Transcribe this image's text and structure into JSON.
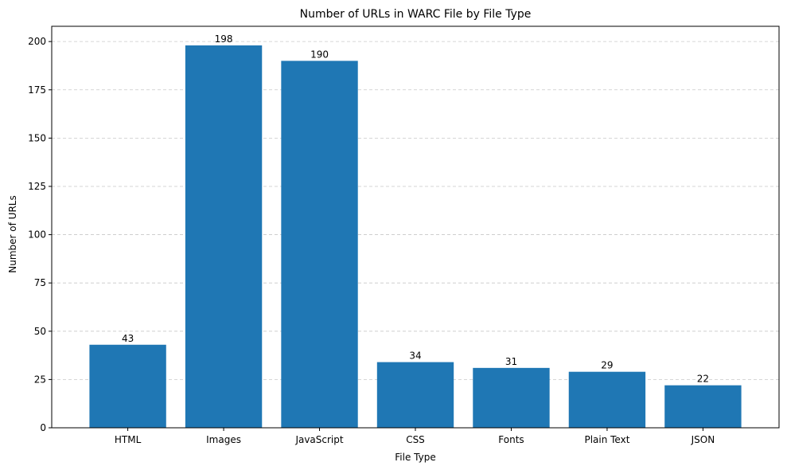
{
  "chart_data": {
    "type": "bar",
    "title": "Number of URLs in WARC File by File Type",
    "xlabel": "File Type",
    "ylabel": "Number of URLs",
    "categories": [
      "HTML",
      "Images",
      "JavaScript",
      "CSS",
      "Fonts",
      "Plain Text",
      "JSON"
    ],
    "values": [
      43,
      198,
      190,
      34,
      31,
      29,
      22
    ],
    "data_labels": [
      "43",
      "198",
      "190",
      "34",
      "31",
      "29",
      "22"
    ],
    "ylim": [
      0,
      207.9
    ],
    "yticks": [
      0,
      25,
      50,
      75,
      100,
      125,
      150,
      175,
      200
    ],
    "ytick_labels": [
      "0",
      "25",
      "50",
      "75",
      "100",
      "125",
      "150",
      "175",
      "200"
    ],
    "grid": {
      "y": true,
      "x": false,
      "style": "dashed"
    },
    "legend": "none",
    "colors": {
      "bar": "#1f77b4",
      "grid": "#c8c8c8",
      "axis": "#000000",
      "text": "#000000"
    }
  }
}
